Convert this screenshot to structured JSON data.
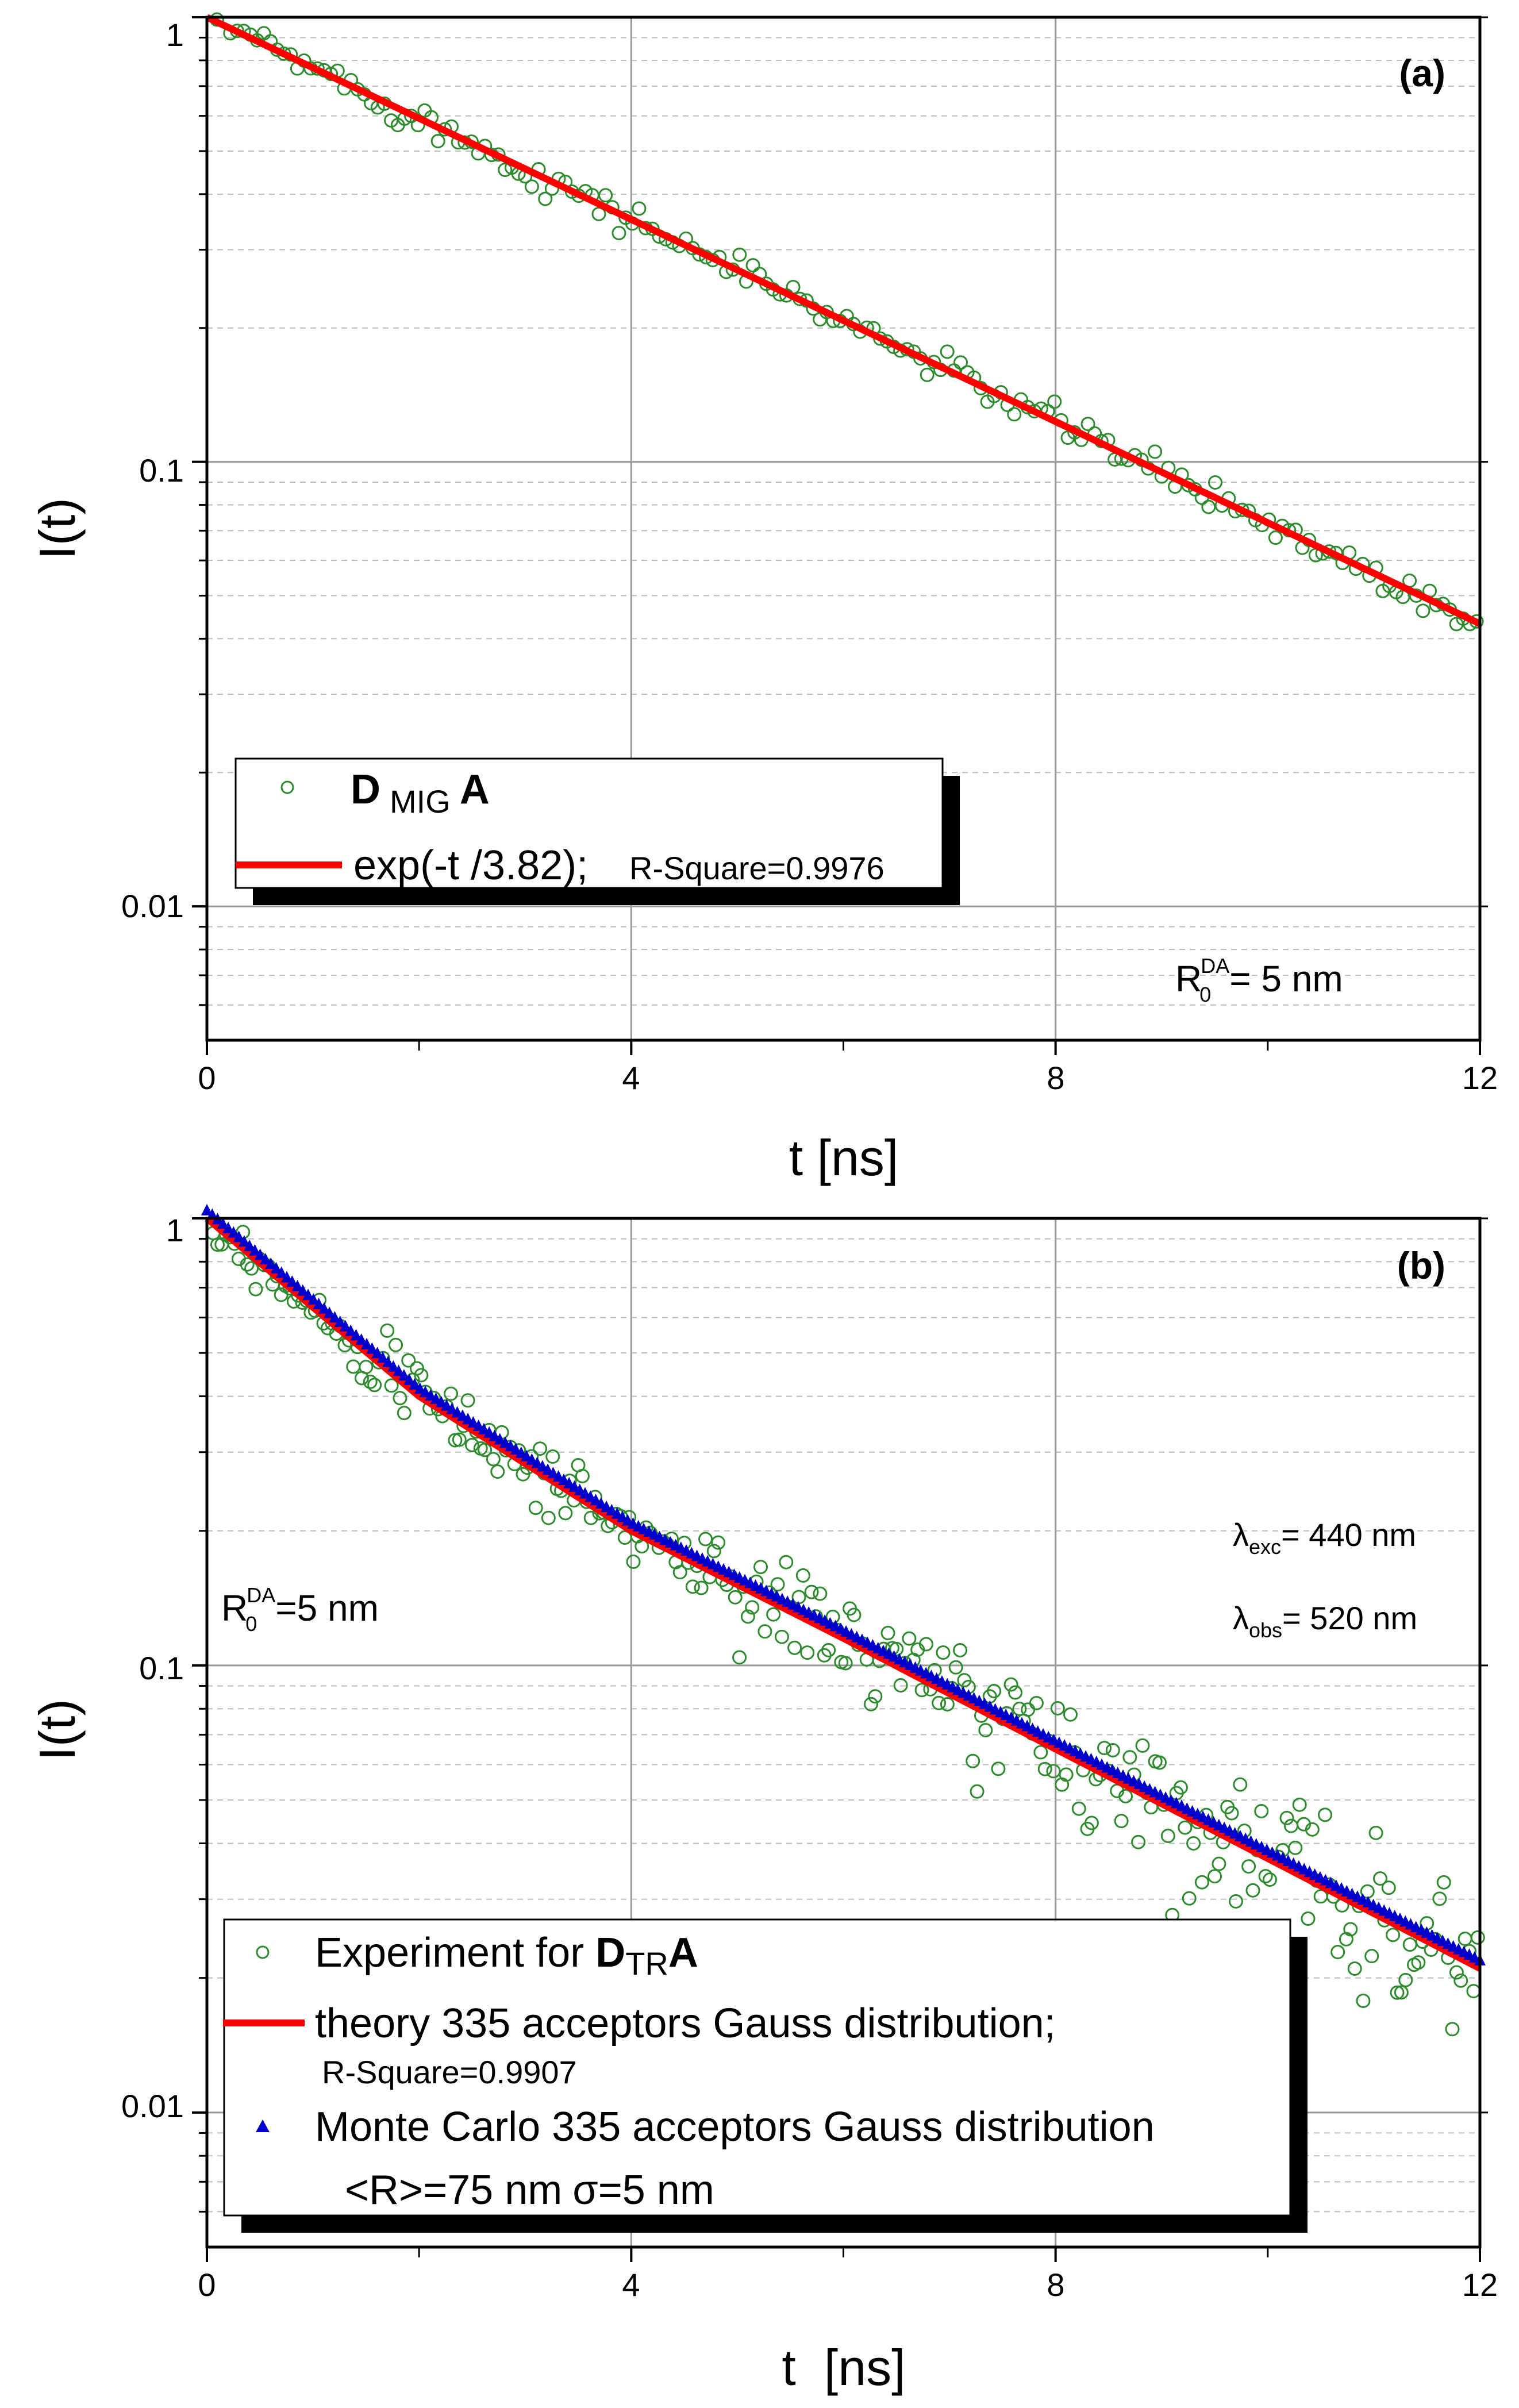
{
  "chart_data": [
    {
      "panel_label": "(a)",
      "type": "scatter+line",
      "xlabel": "t [ns]",
      "ylabel": "I(t)",
      "xlim": [
        0,
        12
      ],
      "ylim": [
        0.005,
        1
      ],
      "yscale": "log",
      "xticks": [
        "0",
        "4",
        "8",
        "12"
      ],
      "yticks": [
        "1",
        "0.1",
        "0.01"
      ],
      "grid": true,
      "annotations": {
        "r0_prefix": "R",
        "r0_sub": "0",
        "r0_sup": "DA",
        "r0_value": "= 5 nm"
      },
      "legend": {
        "position": "bottom-left",
        "entries": {
          "scatter_main": "D",
          "scatter_sub": "MIG",
          "scatter_tail": "A",
          "fit": "exp(-t /3.82);",
          "fit_r2": "R-Square=0.9976"
        }
      },
      "series": [
        {
          "name": "D MIG A",
          "kind": "scatter",
          "color": "#2e8b2e",
          "model": "exp",
          "tau": 3.82,
          "noise": 0.04,
          "n_points": 190
        },
        {
          "name": "exp(-t /3.82)",
          "kind": "line",
          "color": "#ff0000",
          "model": "exp",
          "tau": 3.82
        }
      ]
    },
    {
      "panel_label": "(b)",
      "type": "scatter+line",
      "xlabel": "t  [ns]",
      "ylabel": "I(t)",
      "xlim": [
        0,
        12
      ],
      "ylim": [
        0.005,
        1
      ],
      "yscale": "log",
      "xticks": [
        "0",
        "4",
        "8",
        "12"
      ],
      "yticks": [
        "1",
        "0.1",
        "0.01"
      ],
      "grid": true,
      "annotations": {
        "r0_prefix": "R",
        "r0_sub": "0",
        "r0_sup": "DA",
        "r0_value": "=5 nm",
        "lexc_sym": "λ",
        "lexc_sub": "exc",
        "lexc_value": "= 440 nm",
        "lobs_sym": "λ",
        "lobs_sub": "obs",
        "lobs_value": "= 520 nm"
      },
      "legend": {
        "position": "bottom-left",
        "entries": {
          "exp_prefix": "Experiment for ",
          "exp_main": "D",
          "exp_sub": "TR",
          "exp_tail": "A",
          "theory": "theory 335 acceptors Gauss distribution;",
          "theory_r2": "R-Square=0.9907",
          "mc": "Monte Carlo 335 acceptors Gauss distribution",
          "mc_params_r": "<R>=75 nm",
          "mc_params_sigma": "σ=5 nm"
        }
      },
      "series": [
        {
          "name": "Experiment for D TR A",
          "kind": "scatter",
          "color": "#2e8b2e",
          "model": "stretched",
          "values_at": {
            "t": [
              0,
              2,
              4,
              6,
              8,
              10,
              12
            ],
            "I": [
              1.0,
              0.4,
              0.2,
              0.115,
              0.065,
              0.037,
              0.021
            ]
          },
          "noise": 0.14,
          "n_points": 300
        },
        {
          "name": "theory 335 acceptors Gauss distribution",
          "kind": "line",
          "color": "#ff0000",
          "values_at": {
            "t": [
              0,
              2,
              4,
              6,
              8,
              10,
              12
            ],
            "I": [
              1.0,
              0.4,
              0.2,
              0.115,
              0.065,
              0.037,
              0.021
            ]
          }
        },
        {
          "name": "Monte Carlo 335 acceptors Gauss distribution",
          "kind": "triangles",
          "color": "#0000cc",
          "values_at": {
            "t": [
              0,
              2,
              4,
              6,
              8,
              10,
              12
            ],
            "I": [
              1.0,
              0.4,
              0.2,
              0.115,
              0.065,
              0.037,
              0.021
            ]
          },
          "n_points": 240
        }
      ]
    }
  ]
}
